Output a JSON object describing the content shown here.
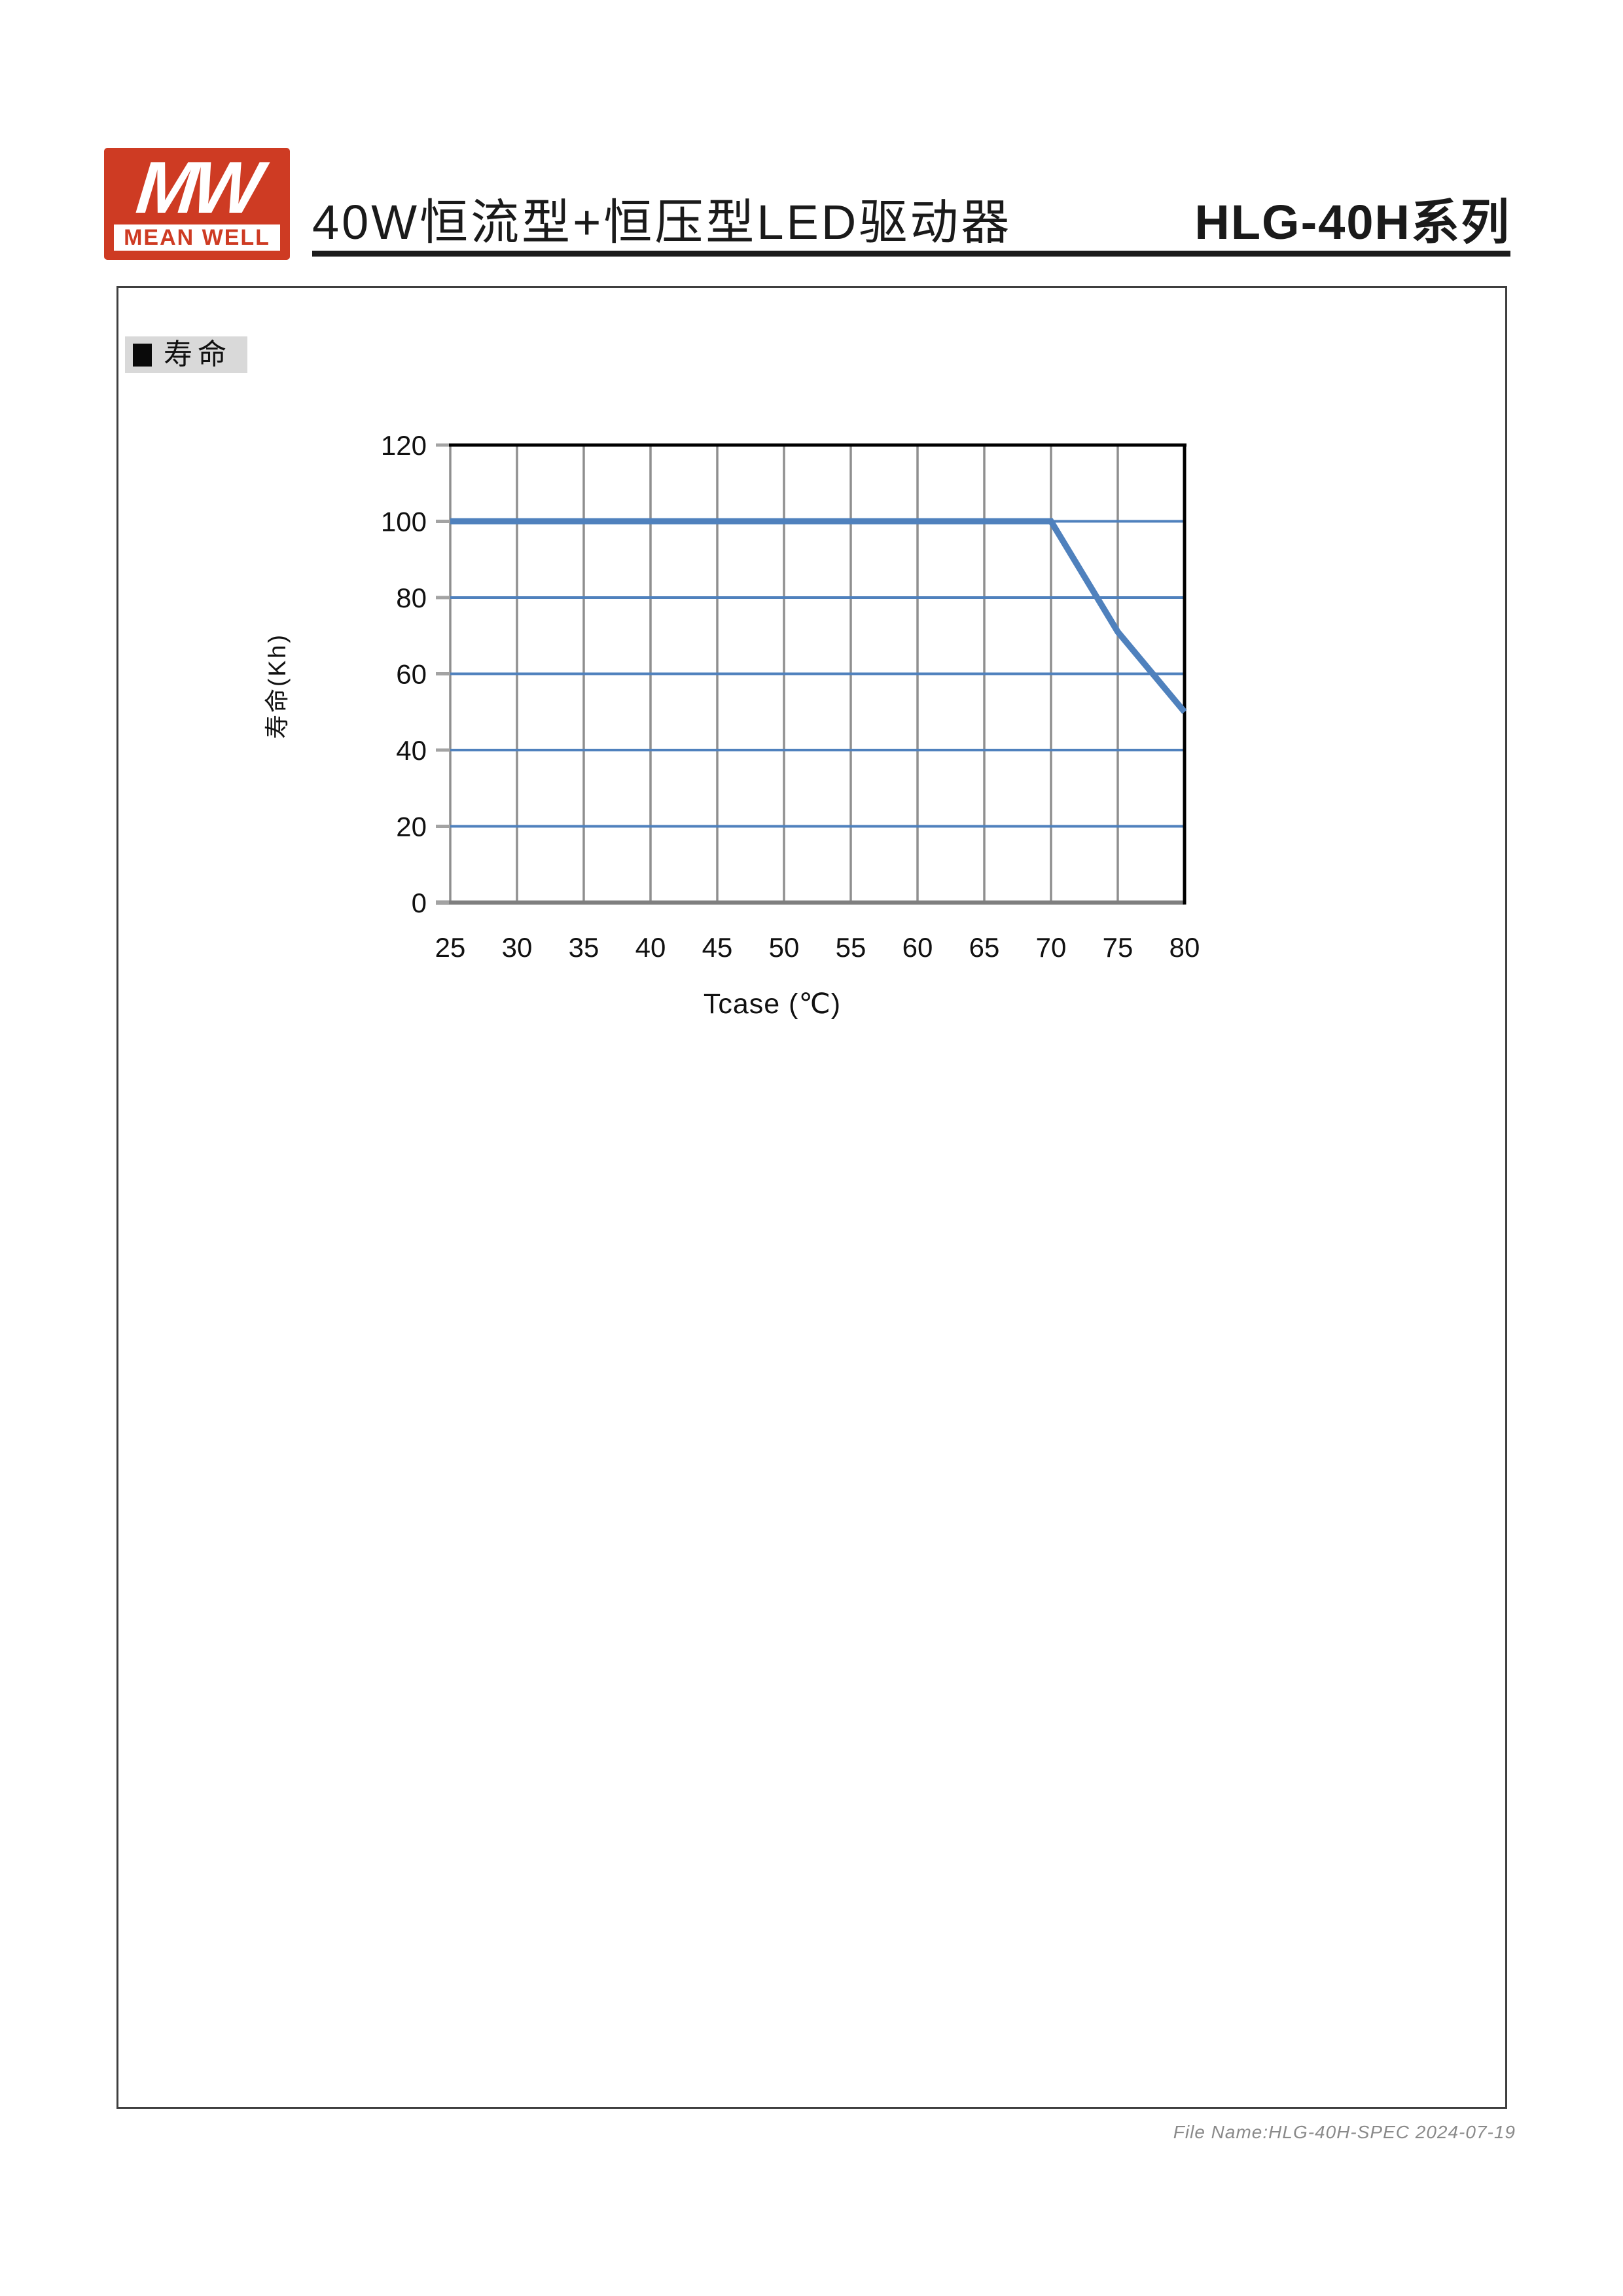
{
  "header": {
    "logo_monogram": "MW",
    "logo_brand": "MEAN WELL",
    "title": "40W恒流型+恒压型LED驱动器",
    "series_name": "HLG-40H系列"
  },
  "section": {
    "label": "寿命"
  },
  "chart_data": {
    "type": "line",
    "title": "",
    "xlabel": "Tcase (℃)",
    "ylabel": "寿命(Kh)",
    "xlim": [
      25,
      80
    ],
    "ylim": [
      0,
      120
    ],
    "x_ticks": [
      25,
      30,
      35,
      40,
      45,
      50,
      55,
      60,
      65,
      70,
      75,
      80
    ],
    "y_ticks": [
      0,
      20,
      40,
      60,
      80,
      100,
      120
    ],
    "grid": true,
    "legend_position": "none",
    "series": [
      {
        "name": "寿命",
        "color": "#4f81bd",
        "points": [
          [
            25,
            100
          ],
          [
            70,
            100
          ],
          [
            75,
            71
          ],
          [
            80,
            50
          ]
        ]
      }
    ]
  },
  "colors": {
    "brand_red": "#ce3b23",
    "line_blue": "#4f81bd",
    "h_grid_blue": "#4f81bd",
    "v_grid_gray": "#8f8f8f",
    "axis_gray": "#7f7f7f",
    "tick_gray": "#a3a3a3",
    "border_black": "#000000",
    "label_bg_gray": "#d9d9d9",
    "footer_gray": "#8a8a8a"
  },
  "footer": {
    "file_note": "File Name:HLG-40H-SPEC 2024-07-19"
  }
}
